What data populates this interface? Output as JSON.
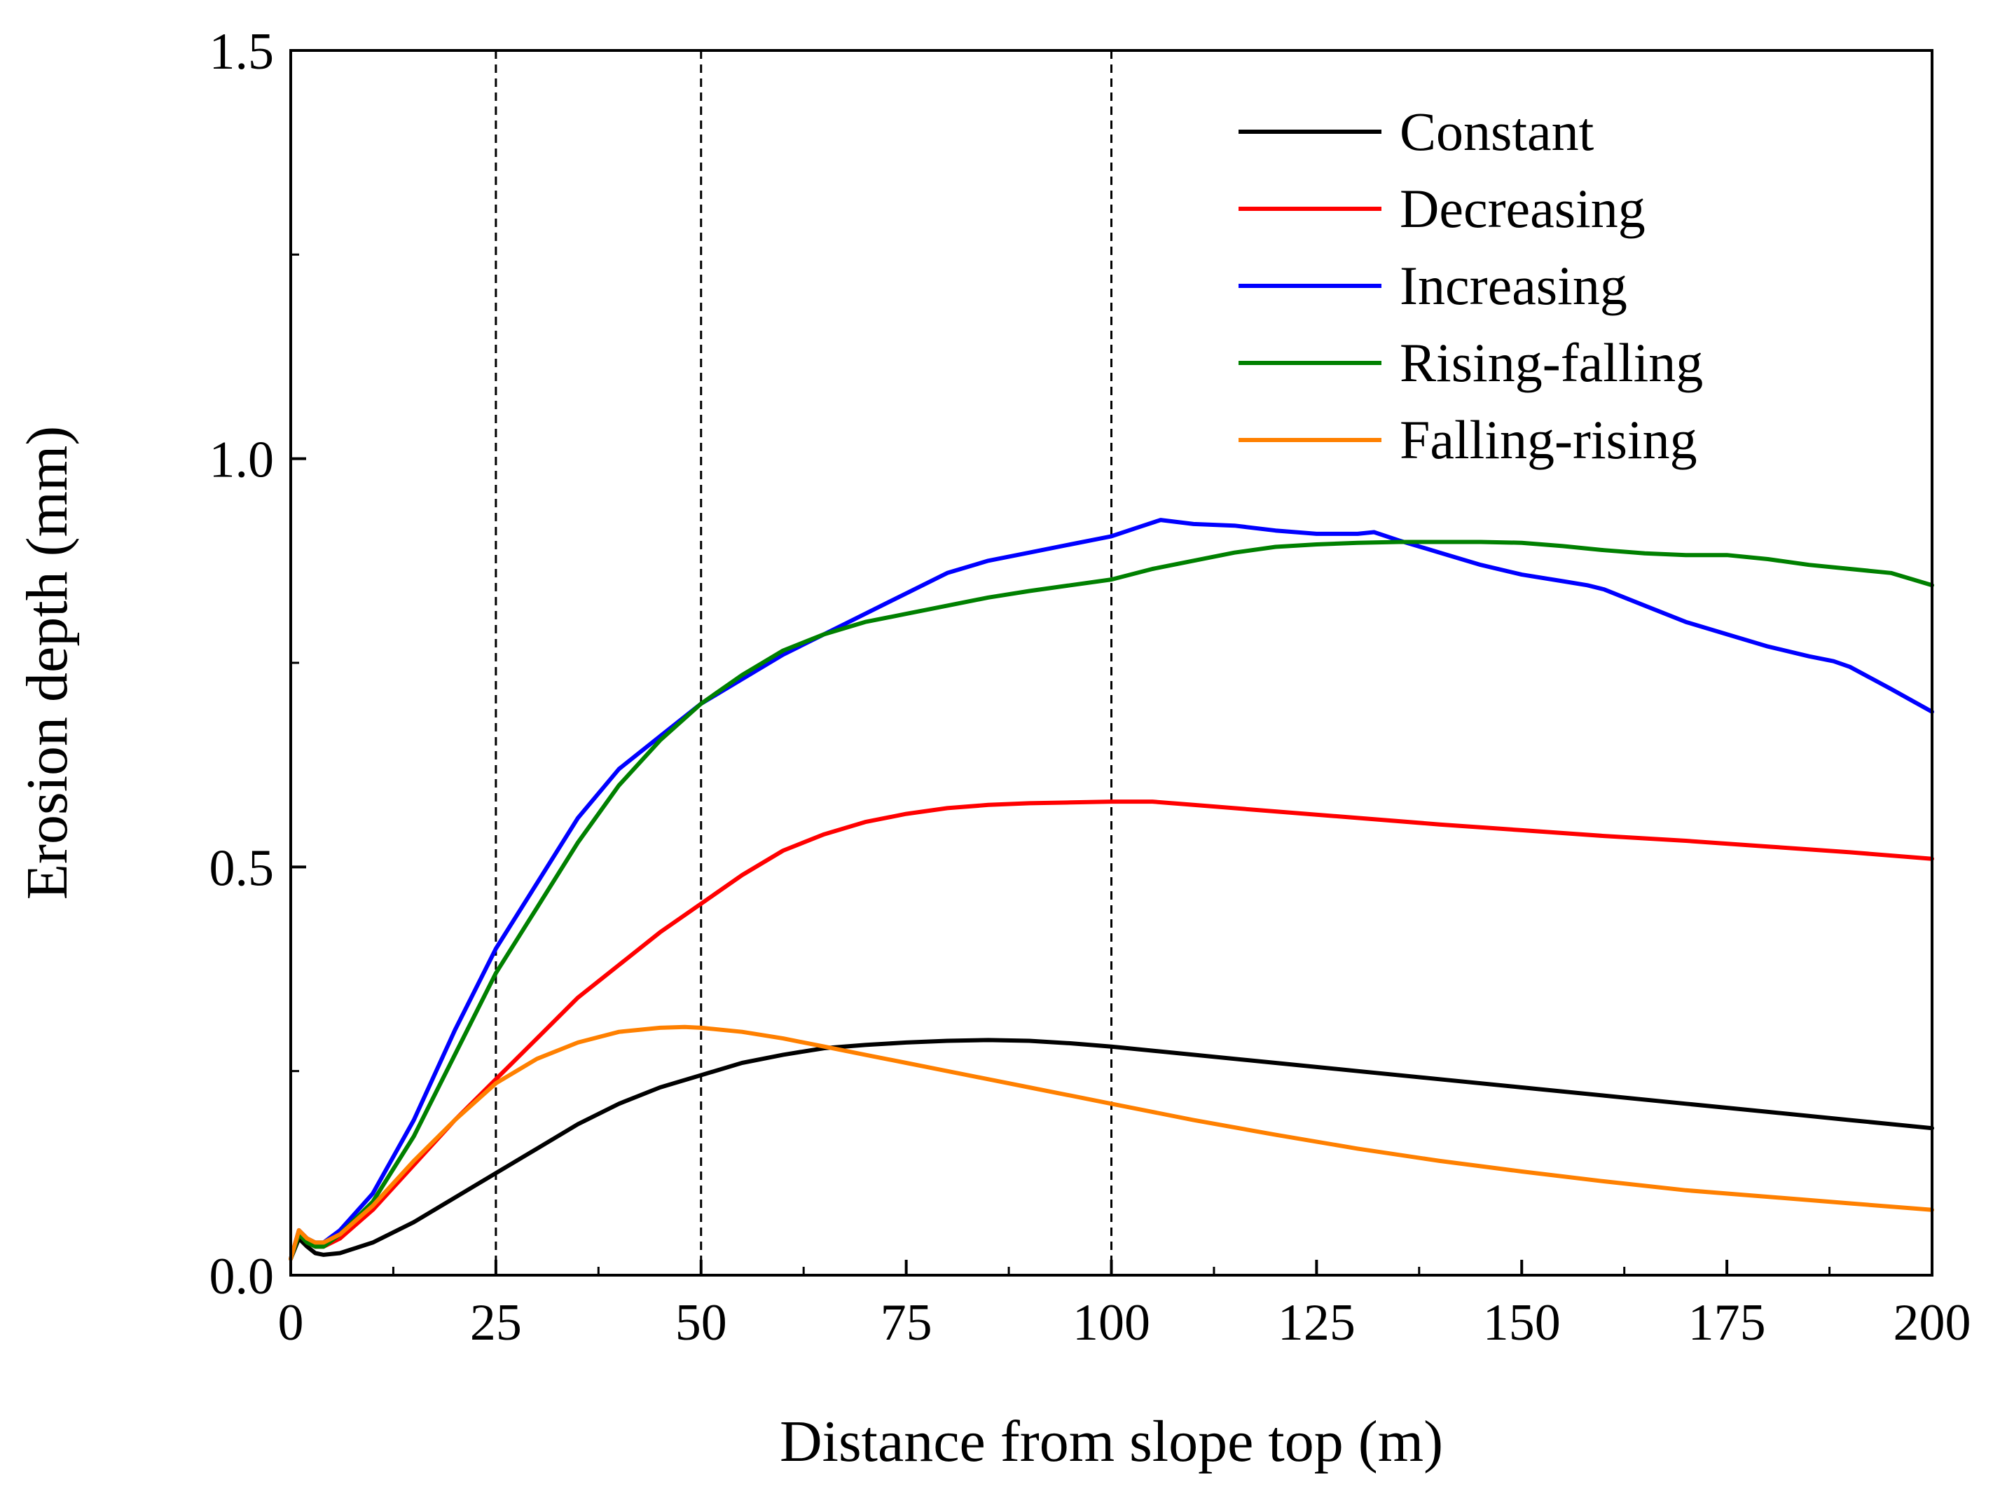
{
  "chart_data": {
    "type": "line",
    "title": "",
    "xlabel": "Distance from slope top (m)",
    "ylabel": "Erosion depth (mm)",
    "xlim": [
      0,
      200
    ],
    "ylim": [
      0,
      1.5
    ],
    "xticks": [
      0,
      25,
      50,
      75,
      100,
      125,
      150,
      175,
      200
    ],
    "xtick_labels": [
      "0",
      "25",
      "50",
      "75",
      "100",
      "125",
      "150",
      "175",
      "200"
    ],
    "yticks": [
      0.0,
      0.5,
      1.0,
      1.5
    ],
    "ytick_labels": [
      "0.0",
      "0.5",
      "1.0",
      "1.5"
    ],
    "grid": false,
    "legend_position": "top-right",
    "reference_lines_x": [
      25,
      50,
      100
    ],
    "series": [
      {
        "name": "Constant",
        "color": "#000000",
        "x": [
          0,
          1,
          2,
          3,
          4,
          6,
          10,
          15,
          20,
          25,
          30,
          35,
          40,
          45,
          50,
          55,
          60,
          65,
          70,
          75,
          80,
          85,
          90,
          95,
          100,
          110,
          120,
          130,
          140,
          150,
          160,
          170,
          180,
          190,
          200
        ],
        "y": [
          0.02,
          0.045,
          0.035,
          0.027,
          0.025,
          0.027,
          0.04,
          0.065,
          0.095,
          0.125,
          0.155,
          0.185,
          0.21,
          0.23,
          0.245,
          0.26,
          0.27,
          0.278,
          0.282,
          0.285,
          0.287,
          0.288,
          0.287,
          0.284,
          0.28,
          0.27,
          0.26,
          0.25,
          0.24,
          0.23,
          0.22,
          0.21,
          0.2,
          0.19,
          0.18
        ]
      },
      {
        "name": "Decreasing",
        "color": "#ff0000",
        "x": [
          0,
          1,
          2,
          3,
          4,
          6,
          10,
          15,
          20,
          25,
          30,
          35,
          40,
          45,
          50,
          55,
          60,
          65,
          70,
          75,
          80,
          85,
          90,
          95,
          100,
          105,
          110,
          120,
          130,
          140,
          150,
          160,
          170,
          180,
          190,
          200
        ],
        "y": [
          0.02,
          0.05,
          0.04,
          0.035,
          0.035,
          0.045,
          0.08,
          0.135,
          0.19,
          0.24,
          0.29,
          0.34,
          0.38,
          0.42,
          0.455,
          0.49,
          0.52,
          0.54,
          0.555,
          0.565,
          0.572,
          0.576,
          0.578,
          0.579,
          0.58,
          0.58,
          0.576,
          0.568,
          0.56,
          0.552,
          0.545,
          0.538,
          0.532,
          0.525,
          0.518,
          0.51
        ]
      },
      {
        "name": "Increasing",
        "color": "#0000ff",
        "x": [
          0,
          1,
          2,
          3,
          4,
          6,
          10,
          15,
          20,
          25,
          30,
          35,
          40,
          45,
          50,
          55,
          60,
          65,
          70,
          75,
          80,
          85,
          90,
          95,
          100,
          103,
          106,
          110,
          115,
          120,
          125,
          130,
          132,
          135,
          140,
          145,
          150,
          155,
          158,
          160,
          165,
          170,
          175,
          180,
          185,
          188,
          190,
          195,
          200
        ],
        "y": [
          0.02,
          0.055,
          0.045,
          0.04,
          0.04,
          0.055,
          0.1,
          0.19,
          0.3,
          0.4,
          0.48,
          0.56,
          0.62,
          0.66,
          0.7,
          0.73,
          0.76,
          0.785,
          0.81,
          0.835,
          0.86,
          0.875,
          0.885,
          0.895,
          0.905,
          0.915,
          0.925,
          0.92,
          0.918,
          0.912,
          0.908,
          0.908,
          0.91,
          0.9,
          0.885,
          0.87,
          0.858,
          0.85,
          0.845,
          0.84,
          0.82,
          0.8,
          0.785,
          0.77,
          0.758,
          0.752,
          0.745,
          0.718,
          0.69
        ]
      },
      {
        "name": "Rising-falling",
        "color": "#008000",
        "x": [
          0,
          1,
          2,
          3,
          4,
          6,
          10,
          15,
          20,
          25,
          30,
          35,
          40,
          45,
          50,
          55,
          60,
          65,
          70,
          75,
          80,
          85,
          90,
          95,
          100,
          105,
          110,
          115,
          120,
          125,
          130,
          135,
          140,
          145,
          150,
          155,
          160,
          165,
          170,
          175,
          180,
          185,
          190,
          195,
          200
        ],
        "y": [
          0.02,
          0.05,
          0.04,
          0.035,
          0.035,
          0.05,
          0.09,
          0.17,
          0.27,
          0.37,
          0.45,
          0.53,
          0.6,
          0.655,
          0.7,
          0.735,
          0.765,
          0.785,
          0.8,
          0.81,
          0.82,
          0.83,
          0.838,
          0.845,
          0.852,
          0.865,
          0.875,
          0.885,
          0.892,
          0.895,
          0.897,
          0.898,
          0.898,
          0.898,
          0.897,
          0.893,
          0.888,
          0.884,
          0.882,
          0.882,
          0.877,
          0.87,
          0.865,
          0.86,
          0.845
        ]
      },
      {
        "name": "Falling-rising",
        "color": "#ff8000",
        "x": [
          0,
          1,
          2,
          3,
          4,
          6,
          10,
          15,
          20,
          25,
          30,
          35,
          40,
          45,
          48,
          50,
          55,
          60,
          65,
          70,
          75,
          80,
          85,
          90,
          95,
          100,
          110,
          120,
          130,
          140,
          150,
          160,
          170,
          180,
          190,
          200
        ],
        "y": [
          0.02,
          0.055,
          0.045,
          0.04,
          0.04,
          0.05,
          0.085,
          0.14,
          0.19,
          0.235,
          0.265,
          0.285,
          0.298,
          0.303,
          0.304,
          0.303,
          0.298,
          0.29,
          0.28,
          0.27,
          0.26,
          0.25,
          0.24,
          0.23,
          0.22,
          0.21,
          0.19,
          0.172,
          0.155,
          0.14,
          0.127,
          0.115,
          0.104,
          0.096,
          0.088,
          0.08
        ]
      }
    ]
  }
}
